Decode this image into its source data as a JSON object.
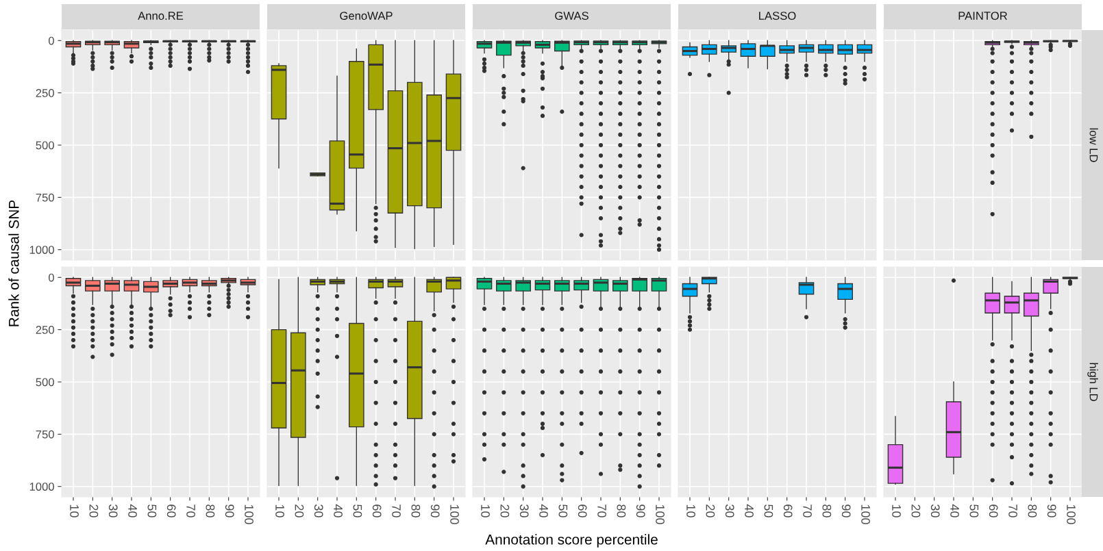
{
  "chart_data": [
    {
      "type": "box",
      "title": "Anno.RE",
      "ylabel": "Rank of causal SNP",
      "categories": [
        "10",
        "20",
        "30",
        "40",
        "50",
        "60",
        "70",
        "80",
        "90",
        "100"
      ],
      "ylim": [
        1050,
        -50
      ],
      "yticks": [
        0,
        250,
        500,
        750,
        1000
      ],
      "grid": true,
      "tick_labels": "y",
      "series": [
        {
          "color": "#f8766d",
          "boxes": [
            {
              "low": 0,
              "q1": 5,
              "median": 15,
              "q3": 30,
              "high": 60,
              "outliers": [
                70,
                85,
                100,
                110
              ]
            },
            {
              "low": 0,
              "q1": 3,
              "median": 8,
              "q3": 20,
              "high": 45,
              "outliers": [
                60,
                80,
                100,
                120,
                135
              ]
            },
            {
              "low": 0,
              "q1": 3,
              "median": 8,
              "q3": 20,
              "high": 45,
              "outliers": [
                60,
                80,
                100,
                130
              ]
            },
            {
              "low": 0,
              "q1": 5,
              "median": 15,
              "q3": 35,
              "high": 60,
              "outliers": [
                75,
                100
              ]
            },
            {
              "low": 0,
              "q1": 2,
              "median": 5,
              "q3": 10,
              "high": 20,
              "outliers": [
                40,
                60,
                80,
                110,
                130
              ]
            },
            {
              "low": 0,
              "q1": 1,
              "median": 3,
              "q3": 6,
              "high": 12,
              "outliers": [
                20,
                40,
                60,
                80,
                100,
                120
              ]
            },
            {
              "low": 0,
              "q1": 1,
              "median": 3,
              "q3": 6,
              "high": 12,
              "outliers": [
                20,
                40,
                60,
                80,
                100,
                135
              ]
            },
            {
              "low": 0,
              "q1": 1,
              "median": 3,
              "q3": 6,
              "high": 12,
              "outliers": [
                20,
                40,
                60,
                80,
                95
              ]
            },
            {
              "low": 0,
              "q1": 1,
              "median": 3,
              "q3": 6,
              "high": 12,
              "outliers": [
                20,
                40,
                60,
                80,
                100
              ]
            },
            {
              "low": 0,
              "q1": 1,
              "median": 3,
              "q3": 6,
              "high": 12,
              "outliers": [
                20,
                40,
                60,
                80,
                100,
                120,
                150
              ]
            }
          ]
        }
      ]
    },
    {
      "type": "box",
      "title": "GenoWAP",
      "categories": [
        "10",
        "20",
        "30",
        "40",
        "50",
        "60",
        "70",
        "80",
        "90",
        "100"
      ],
      "ylim": [
        1050,
        -50
      ],
      "yticks": [
        0,
        250,
        500,
        750,
        1000
      ],
      "grid": true,
      "tick_labels": false,
      "series": [
        {
          "color": "#a3a500",
          "boxes": [
            {
              "low": 110,
              "q1": 120,
              "median": 140,
              "q3": 375,
              "high": 610
            },
            null,
            {
              "low": 633,
              "q1": 633,
              "median": 640,
              "q3": 647,
              "high": 647
            },
            {
              "low": 170,
              "q1": 480,
              "median": 780,
              "q3": 810,
              "high": 830
            },
            {
              "low": 40,
              "q1": 100,
              "median": 545,
              "q3": 610,
              "high": 910
            },
            {
              "low": 0,
              "q1": 20,
              "median": 115,
              "q3": 330,
              "high": 780,
              "outliers": [
                800,
                830,
                860,
                900,
                940,
                960
              ]
            },
            {
              "low": 0,
              "q1": 240,
              "median": 515,
              "q3": 825,
              "high": 990
            },
            {
              "low": 0,
              "q1": 200,
              "median": 490,
              "q3": 790,
              "high": 995
            },
            {
              "low": 0,
              "q1": 260,
              "median": 480,
              "q3": 800,
              "high": 985
            },
            {
              "low": 0,
              "q1": 160,
              "median": 275,
              "q3": 525,
              "high": 975
            }
          ]
        }
      ]
    },
    {
      "type": "box",
      "title": "GWAS",
      "categories": [
        "10",
        "20",
        "30",
        "40",
        "50",
        "60",
        "70",
        "80",
        "90",
        "100"
      ],
      "ylim": [
        1050,
        -50
      ],
      "yticks": [
        0,
        250,
        500,
        750,
        1000
      ],
      "grid": true,
      "tick_labels": false,
      "series": [
        {
          "color": "#00bf7d",
          "boxes": [
            {
              "low": 0,
              "q1": 5,
              "median": 15,
              "q3": 35,
              "high": 60,
              "outliers": [
                90,
                110,
                130,
                145
              ]
            },
            {
              "low": 0,
              "q1": 3,
              "median": 10,
              "q3": 70,
              "high": 130,
              "outliers": [
                170,
                230,
                250,
                270,
                340,
                400
              ]
            },
            {
              "low": 0,
              "q1": 3,
              "median": 10,
              "q3": 25,
              "high": 50,
              "outliers": [
                60,
                80,
                100,
                120,
                160,
                240,
                280,
                290,
                610
              ]
            },
            {
              "low": 0,
              "q1": 5,
              "median": 20,
              "q3": 35,
              "high": 60,
              "outliers": [
                110,
                150,
                170,
                180,
                230,
                320,
                360
              ]
            },
            {
              "low": 0,
              "q1": 3,
              "median": 10,
              "q3": 50,
              "high": 120,
              "outliers": [
                130,
                340
              ]
            },
            {
              "low": 0,
              "q1": 2,
              "median": 8,
              "q3": 20,
              "high": 40,
              "outliers": [
                50,
                100,
                150,
                200,
                250,
                300,
                350,
                400,
                450,
                500,
                550,
                600,
                650,
                700,
                750,
                780,
                930
              ]
            },
            {
              "low": 0,
              "q1": 2,
              "median": 8,
              "q3": 20,
              "high": 40,
              "outliers": [
                50,
                100,
                150,
                200,
                250,
                300,
                350,
                400,
                450,
                500,
                550,
                600,
                650,
                700,
                750,
                800,
                850,
                930,
                960,
                980
              ]
            },
            {
              "low": 0,
              "q1": 2,
              "median": 8,
              "q3": 20,
              "high": 40,
              "outliers": [
                50,
                100,
                150,
                200,
                250,
                300,
                350,
                400,
                450,
                500,
                550,
                600,
                650,
                700,
                750,
                800,
                850,
                900,
                920
              ]
            },
            {
              "low": 0,
              "q1": 2,
              "median": 8,
              "q3": 20,
              "high": 40,
              "outliers": [
                50,
                100,
                150,
                200,
                250,
                300,
                350,
                400,
                450,
                500,
                550,
                600,
                650,
                700,
                750,
                860,
                880
              ]
            },
            {
              "low": 0,
              "q1": 2,
              "median": 8,
              "q3": 15,
              "high": 35,
              "outliers": [
                50,
                100,
                150,
                200,
                250,
                300,
                350,
                400,
                450,
                500,
                550,
                600,
                650,
                700,
                750,
                800,
                850,
                900,
                950,
                980,
                1000
              ]
            }
          ]
        }
      ]
    },
    {
      "type": "box",
      "title": "LASSO",
      "categories": [
        "10",
        "20",
        "30",
        "40",
        "50",
        "60",
        "70",
        "80",
        "90",
        "100"
      ],
      "ylim": [
        1050,
        -50
      ],
      "yticks": [
        0,
        250,
        500,
        750,
        1000
      ],
      "grid": true,
      "tick_labels": false,
      "series": [
        {
          "color": "#00b0f6",
          "boxes": [
            {
              "low": 10,
              "q1": 30,
              "median": 50,
              "q3": 70,
              "high": 80,
              "outliers": [
                160
              ]
            },
            {
              "low": 0,
              "q1": 20,
              "median": 40,
              "q3": 65,
              "high": 100,
              "outliers": [
                165
              ]
            },
            {
              "low": 0,
              "q1": 25,
              "median": 35,
              "q3": 55,
              "high": 90,
              "outliers": [
                100,
                115,
                250
              ]
            },
            {
              "low": 0,
              "q1": 15,
              "median": 40,
              "q3": 75,
              "high": 130
            },
            {
              "low": 0,
              "q1": 25,
              "median": 25,
              "q3": 75,
              "high": 135
            },
            {
              "low": 0,
              "q1": 25,
              "median": 45,
              "q3": 60,
              "high": 100,
              "outliers": [
                120,
                140,
                160,
                175
              ]
            },
            {
              "low": 0,
              "q1": 20,
              "median": 35,
              "q3": 55,
              "high": 100,
              "outliers": [
                120,
                140,
                165
              ]
            },
            {
              "low": 0,
              "q1": 20,
              "median": 45,
              "q3": 60,
              "high": 100,
              "outliers": [
                120,
                140,
                165
              ]
            },
            {
              "low": 0,
              "q1": 20,
              "median": 45,
              "q3": 65,
              "high": 100,
              "outliers": [
                130,
                160,
                190,
                205
              ]
            },
            {
              "low": 0,
              "q1": 20,
              "median": 45,
              "q3": 60,
              "high": 100,
              "outliers": [
                130,
                160,
                185
              ]
            }
          ]
        }
      ]
    },
    {
      "type": "box",
      "title": "PAINTOR",
      "annotations": [
        "low LD"
      ],
      "categories": [
        "10",
        "20",
        "30",
        "40",
        "50",
        "60",
        "70",
        "80",
        "90",
        "100"
      ],
      "ylim": [
        1050,
        -50
      ],
      "yticks": [
        0,
        250,
        500,
        750,
        1000
      ],
      "grid": true,
      "tick_labels": false,
      "series": [
        {
          "color": "#e76bf3",
          "boxes": [
            null,
            null,
            null,
            null,
            null,
            {
              "low": 0,
              "q1": 5,
              "median": 10,
              "q3": 20,
              "high": 30,
              "outliers": [
                40,
                60,
                100,
                150,
                200,
                250,
                300,
                350,
                400,
                450,
                500,
                550,
                630,
                680,
                830
              ]
            },
            {
              "low": 0,
              "q1": 2,
              "median": 5,
              "q3": 8,
              "high": 15,
              "outliers": [
                30,
                60,
                100,
                150,
                200,
                250,
                300,
                350,
                430
              ]
            },
            {
              "low": 0,
              "q1": 5,
              "median": 10,
              "q3": 20,
              "high": 30,
              "outliers": [
                40,
                60,
                100,
                150,
                200,
                250,
                300,
                350,
                460
              ]
            },
            {
              "low": 0,
              "q1": 1,
              "median": 3,
              "q3": 5,
              "high": 10,
              "outliers": [
                20,
                30,
                45
              ]
            },
            {
              "low": 0,
              "q1": 1,
              "median": 2,
              "q3": 4,
              "high": 6,
              "outliers": [
                15,
                25
              ]
            }
          ]
        }
      ]
    },
    {
      "type": "box",
      "categories": [
        "10",
        "20",
        "30",
        "40",
        "50",
        "60",
        "70",
        "80",
        "90",
        "100"
      ],
      "ylim": [
        1050,
        -50
      ],
      "yticks": [
        0,
        250,
        500,
        750,
        1000
      ],
      "grid": true,
      "series": [
        {
          "color": "#f8766d",
          "boxes": [
            {
              "low": 0,
              "q1": 5,
              "median": 25,
              "q3": 40,
              "high": 75,
              "outliers": [
                90,
                120,
                150,
                180,
                210,
                240,
                270,
                300,
                330
              ]
            },
            {
              "low": 0,
              "q1": 15,
              "median": 40,
              "q3": 65,
              "high": 130,
              "outliers": [
                150,
                180,
                210,
                240,
                270,
                300,
                330,
                380
              ]
            },
            {
              "low": 0,
              "q1": 15,
              "median": 30,
              "q3": 65,
              "high": 130,
              "outliers": [
                140,
                170,
                200,
                230,
                260,
                290,
                320,
                370
              ]
            },
            {
              "low": 0,
              "q1": 15,
              "median": 35,
              "q3": 65,
              "high": 130,
              "outliers": [
                140,
                170,
                200,
                230,
                260,
                290,
                330
              ]
            },
            {
              "low": 0,
              "q1": 20,
              "median": 45,
              "q3": 70,
              "high": 140,
              "outliers": [
                150,
                180,
                210,
                240,
                270,
                300,
                330
              ]
            },
            {
              "low": 0,
              "q1": 15,
              "median": 30,
              "q3": 45,
              "high": 80,
              "outliers": [
                100,
                130,
                160,
                180
              ]
            },
            {
              "low": 0,
              "q1": 10,
              "median": 25,
              "q3": 40,
              "high": 70,
              "outliers": [
                90,
                120,
                150,
                190
              ]
            },
            {
              "low": 0,
              "q1": 15,
              "median": 30,
              "q3": 40,
              "high": 70,
              "outliers": [
                90,
                120,
                150,
                180
              ]
            },
            {
              "low": 0,
              "q1": 5,
              "median": 15,
              "q3": 25,
              "high": 30,
              "outliers": [
                40,
                60,
                80,
                100,
                120,
                140
              ]
            },
            {
              "low": 0,
              "q1": 10,
              "median": 25,
              "q3": 35,
              "high": 70,
              "outliers": [
                90,
                120,
                150,
                190
              ]
            }
          ]
        }
      ]
    },
    {
      "type": "box",
      "categories": [
        "10",
        "20",
        "30",
        "40",
        "50",
        "60",
        "70",
        "80",
        "90",
        "100"
      ],
      "ylim": [
        1050,
        -50
      ],
      "yticks": [
        0,
        250,
        500,
        750,
        1000
      ],
      "grid": true,
      "tick_labels": "x",
      "series": [
        {
          "color": "#a3a500",
          "boxes": [
            {
              "low": 10,
              "q1": 250,
              "median": 505,
              "q3": 720,
              "high": 995
            },
            {
              "low": 0,
              "q1": 265,
              "median": 445,
              "q3": 765,
              "high": 995
            },
            {
              "low": 0,
              "q1": 10,
              "median": 20,
              "q3": 35,
              "high": 70,
              "outliers": [
                90,
                150,
                200,
                250,
                300,
                350,
                400,
                460,
                570,
                620
              ]
            },
            {
              "low": 0,
              "q1": 10,
              "median": 20,
              "q3": 30,
              "high": 70,
              "outliers": [
                90,
                150,
                200,
                280,
                380,
                960
              ]
            },
            {
              "low": 0,
              "q1": 220,
              "median": 460,
              "q3": 715,
              "high": 995
            },
            {
              "low": 0,
              "q1": 10,
              "median": 20,
              "q3": 50,
              "high": 100,
              "outliers": [
                120,
                200,
                300,
                400,
                500,
                600,
                700,
                800,
                850,
                900,
                950,
                990
              ]
            },
            {
              "low": 0,
              "q1": 10,
              "median": 20,
              "q3": 45,
              "high": 100,
              "outliers": [
                120,
                200,
                300,
                400,
                500,
                600,
                700,
                800,
                850,
                900,
                960
              ]
            },
            {
              "low": 0,
              "q1": 210,
              "median": 430,
              "q3": 675,
              "high": 995
            },
            {
              "low": 0,
              "q1": 10,
              "median": 20,
              "q3": 70,
              "high": 160,
              "outliers": [
                180,
                250,
                350,
                450,
                550,
                650,
                750,
                850,
                900,
                950,
                1000
              ]
            },
            {
              "low": 0,
              "q1": 0,
              "median": 15,
              "q3": 55,
              "high": 120,
              "outliers": [
                140,
                200,
                300,
                400,
                500,
                600,
                700,
                750,
                850,
                880
              ]
            }
          ]
        }
      ]
    },
    {
      "type": "box",
      "xlabel": "Annotation score percentile",
      "categories": [
        "10",
        "20",
        "30",
        "40",
        "50",
        "60",
        "70",
        "80",
        "90",
        "100"
      ],
      "ylim": [
        1050,
        -50
      ],
      "yticks": [
        0,
        250,
        500,
        750,
        1000
      ],
      "grid": true,
      "tick_labels": "x",
      "series": [
        {
          "color": "#00bf7d",
          "boxes": [
            {
              "low": 0,
              "q1": 5,
              "median": 20,
              "q3": 55,
              "high": 130,
              "outliers": [
                150,
                250,
                350,
                450,
                550,
                650,
                750,
                800,
                870
              ]
            },
            {
              "low": 0,
              "q1": 15,
              "median": 30,
              "q3": 65,
              "high": 130,
              "outliers": [
                150,
                250,
                350,
                450,
                550,
                650,
                750,
                800,
                930
              ]
            },
            {
              "low": 0,
              "q1": 15,
              "median": 25,
              "q3": 65,
              "high": 130,
              "outliers": [
                150,
                250,
                350,
                450,
                550,
                650,
                750,
                800,
                900,
                950,
                1000
              ]
            },
            {
              "low": 0,
              "q1": 15,
              "median": 30,
              "q3": 60,
              "high": 130,
              "outliers": [
                150,
                250,
                350,
                450,
                550,
                650,
                700,
                720,
                850
              ]
            },
            {
              "low": 0,
              "q1": 15,
              "median": 30,
              "q3": 65,
              "high": 130,
              "outliers": [
                150,
                250,
                350,
                450,
                550,
                650,
                700,
                800,
                900,
                940,
                970
              ]
            },
            {
              "low": 0,
              "q1": 15,
              "median": 30,
              "q3": 60,
              "high": 120,
              "outliers": [
                140,
                250,
                350,
                450,
                550,
                650,
                700,
                840
              ]
            },
            {
              "low": 0,
              "q1": 10,
              "median": 25,
              "q3": 65,
              "high": 140,
              "outliers": [
                150,
                250,
                350,
                450,
                550,
                650,
                750,
                800,
                940
              ]
            },
            {
              "low": 0,
              "q1": 15,
              "median": 30,
              "q3": 65,
              "high": 140,
              "outliers": [
                150,
                250,
                350,
                450,
                550,
                650,
                750,
                900,
                920
              ]
            },
            {
              "low": 0,
              "q1": 5,
              "median": 10,
              "q3": 65,
              "high": 140,
              "outliers": [
                150,
                250,
                350,
                450,
                550,
                650,
                750,
                800,
                850,
                900,
                950,
                1000
              ]
            },
            {
              "low": 0,
              "q1": 5,
              "median": 15,
              "q3": 65,
              "high": 140,
              "outliers": [
                150,
                250,
                350,
                450,
                550,
                650,
                700,
                750,
                850,
                900
              ]
            }
          ]
        }
      ]
    },
    {
      "type": "box",
      "categories": [
        "10",
        "20",
        "30",
        "40",
        "50",
        "60",
        "70",
        "80",
        "90",
        "100"
      ],
      "ylim": [
        1050,
        -50
      ],
      "yticks": [
        0,
        250,
        500,
        750,
        1000
      ],
      "grid": true,
      "tick_labels": "x",
      "series": [
        {
          "color": "#00b0f6",
          "boxes": [
            {
              "low": 0,
              "q1": 30,
              "median": 55,
              "q3": 90,
              "high": 170,
              "outliers": [
                190,
                210,
                230,
                250
              ]
            },
            {
              "low": 0,
              "q1": 0,
              "median": 5,
              "q3": 30,
              "high": 70,
              "outliers": [
                90,
                110,
                130,
                150
              ]
            },
            null,
            null,
            null,
            null,
            {
              "low": 0,
              "q1": 25,
              "median": 35,
              "q3": 80,
              "high": 150,
              "outliers": [
                190
              ]
            },
            null,
            {
              "low": 0,
              "q1": 30,
              "median": 55,
              "q3": 105,
              "high": 170,
              "outliers": [
                200,
                220,
                240
              ]
            },
            null
          ]
        }
      ]
    },
    {
      "type": "box",
      "annotations": [
        "high LD"
      ],
      "categories": [
        "10",
        "20",
        "30",
        "40",
        "50",
        "60",
        "70",
        "80",
        "90",
        "100"
      ],
      "ylim": [
        1050,
        -50
      ],
      "yticks": [
        0,
        250,
        500,
        750,
        1000
      ],
      "grid": true,
      "tick_labels": "x",
      "series": [
        {
          "color": "#e76bf3",
          "boxes": [
            {
              "low": 665,
              "q1": 800,
              "median": 910,
              "q3": 985,
              "high": 990
            },
            null,
            null,
            {
              "low": 500,
              "q1": 595,
              "median": 740,
              "q3": 860,
              "high": 940,
              "outliers": [
                15
              ]
            },
            null,
            {
              "low": 0,
              "q1": 75,
              "median": 110,
              "q3": 170,
              "high": 300,
              "outliers": [
                320,
                400,
                450,
                500,
                550,
                600,
                650,
                700,
                750,
                800,
                970
              ]
            },
            {
              "low": 20,
              "q1": 90,
              "median": 120,
              "q3": 170,
              "high": 300,
              "outliers": [
                330,
                400,
                450,
                500,
                550,
                600,
                650,
                700,
                750,
                800,
                860,
                985
              ]
            },
            {
              "low": 0,
              "q1": 75,
              "median": 110,
              "q3": 185,
              "high": 350,
              "outliers": [
                370,
                400,
                450,
                500,
                550,
                600,
                650,
                700,
                750,
                800,
                850,
                900,
                940
              ]
            },
            {
              "low": 0,
              "q1": 10,
              "median": 20,
              "q3": 75,
              "high": 150,
              "outliers": [
                170,
                250,
                350,
                450,
                550,
                650,
                700,
                750,
                800,
                950,
                980
              ]
            },
            {
              "low": 0,
              "q1": 0,
              "median": 3,
              "q3": 5,
              "high": 10,
              "outliers": [
                20,
                30
              ]
            }
          ]
        }
      ]
    }
  ]
}
